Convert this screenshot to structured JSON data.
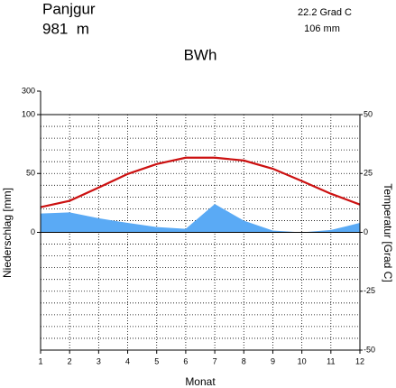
{
  "chart_data": {
    "type": "climate",
    "station": "Panjgur",
    "elevation": "981  m",
    "mean_temperature": "22.2 Grad C",
    "annual_precipitation": "106 mm",
    "climate_class": "BWh",
    "xlabel": "Monat",
    "ylabel": "Niederschlag [mm]",
    "y2label": "Temperatur [Grad C]",
    "x": [
      1,
      2,
      3,
      4,
      5,
      6,
      7,
      8,
      9,
      10,
      11,
      12
    ],
    "xlim": [
      1,
      12
    ],
    "xticks": [
      1,
      2,
      3,
      4,
      5,
      6,
      7,
      8,
      9,
      10,
      11,
      12
    ],
    "ylim": [
      -100,
      300
    ],
    "ybreak": 100,
    "yticks": [
      0,
      50,
      100,
      300
    ],
    "y2lim": [
      -50,
      50
    ],
    "y2ticks": [
      50,
      25,
      0,
      -25,
      -50
    ],
    "y2grid": [
      -45,
      -40,
      -35,
      -30,
      -20,
      -15,
      -10,
      -5,
      5,
      10,
      15,
      20,
      30,
      35,
      40,
      45
    ],
    "grid": true,
    "series": [
      {
        "name": "Niederschlag",
        "color": "#5aaaf5",
        "kind": "area",
        "values": [
          16,
          17,
          12,
          8,
          4.5,
          3,
          24,
          10,
          1.5,
          0,
          2,
          8
        ]
      },
      {
        "name": "Temperatur",
        "color": "#cc1111",
        "kind": "line",
        "axis": "y2",
        "values": [
          10.7,
          13.4,
          19,
          24.8,
          29,
          31.7,
          31.7,
          30.5,
          27,
          21.8,
          16.4,
          11.8
        ]
      }
    ]
  }
}
